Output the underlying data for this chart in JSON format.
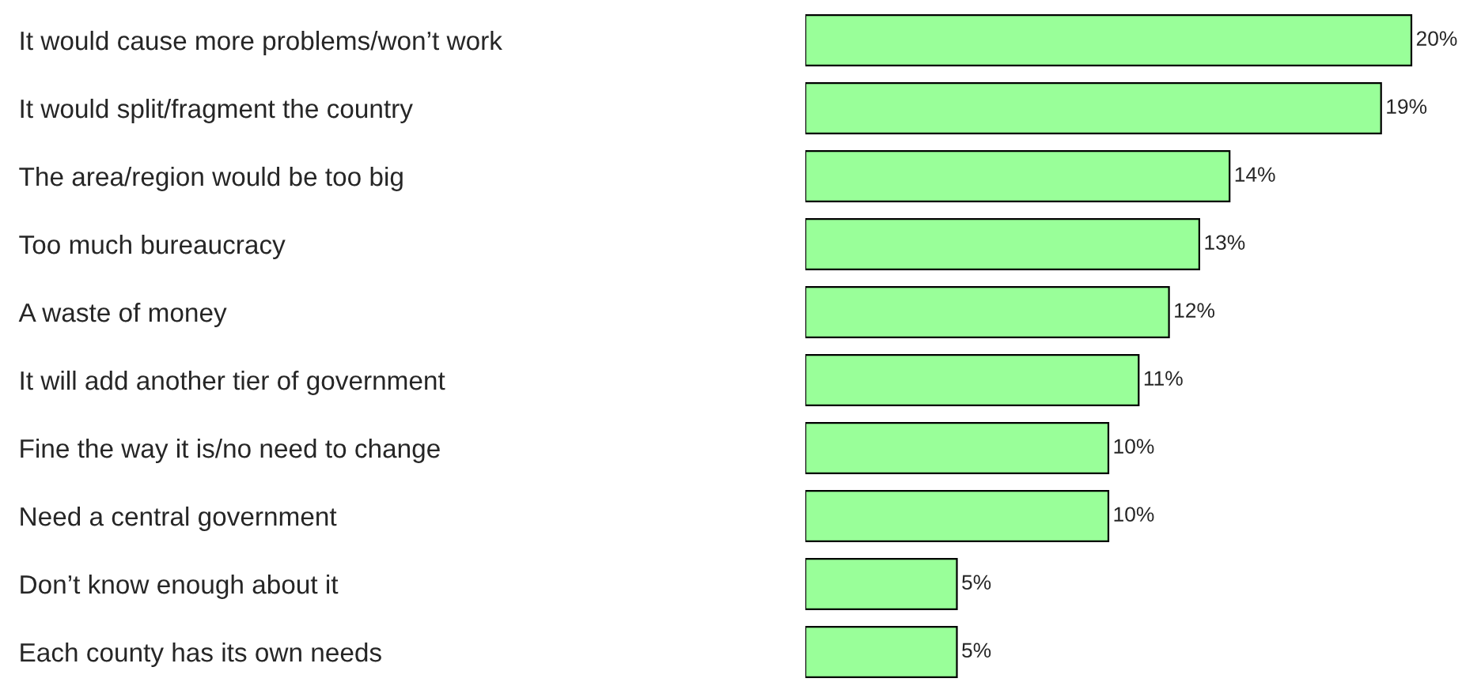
{
  "chart_data": {
    "type": "bar",
    "orientation": "horizontal",
    "categories": [
      "It would cause more problems/won’t work",
      "It would split/fragment the country",
      "The area/region would be too big",
      "Too much bureaucracy",
      "A waste of money",
      "It will add another tier of government",
      "Fine the way it is/no need to change",
      "Need a central government",
      "Don’t know enough about it",
      "Each county has its own needs"
    ],
    "values": [
      20,
      19,
      14,
      13,
      12,
      11,
      10,
      10,
      5,
      5
    ],
    "value_labels": [
      "20%",
      "19%",
      "14%",
      "13%",
      "12%",
      "11%",
      "10%",
      "10%",
      "5%",
      "5%"
    ],
    "color": "#99ff99",
    "grid": false,
    "legend": false
  }
}
